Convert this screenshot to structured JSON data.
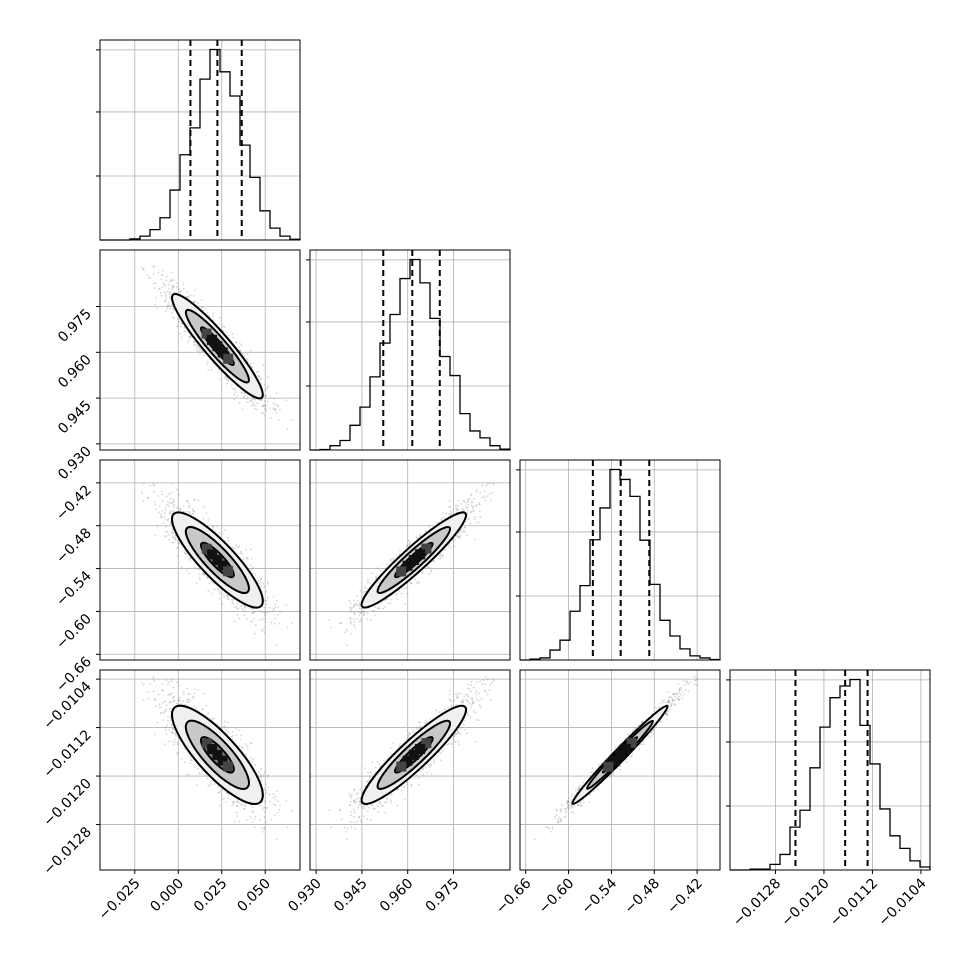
{
  "chart_data": {
    "type": "corner",
    "description_free": true,
    "parameters": [
      {
        "key": "p0",
        "mean": 0.0225,
        "std": 0.0145,
        "range": [
          -0.045,
          0.07
        ],
        "ticks": [
          -0.025,
          0.0,
          0.025,
          0.05
        ],
        "tick_labels": [
          "−0.025",
          "0.000",
          "0.025",
          "0.050"
        ],
        "quantiles": [
          0.007,
          0.0225,
          0.0365
        ]
      },
      {
        "key": "p1",
        "mean": 0.962,
        "std": 0.0095,
        "range": [
          0.928,
          0.9935
        ],
        "ticks": [
          0.93,
          0.945,
          0.96,
          0.975
        ],
        "tick_labels": [
          "0.930",
          "0.945",
          "0.960",
          "0.975"
        ],
        "quantiles": [
          0.952,
          0.9615,
          0.9705
        ]
      },
      {
        "key": "p2",
        "mean": -0.528,
        "std": 0.037,
        "range": [
          -0.668,
          -0.388
        ],
        "ticks": [
          -0.66,
          -0.6,
          -0.54,
          -0.48,
          -0.42
        ],
        "tick_labels": [
          "−0.66",
          "−0.60",
          "−0.54",
          "−0.48",
          "−0.42"
        ],
        "quantiles": [
          -0.566,
          -0.527,
          -0.487
        ]
      },
      {
        "key": "p3",
        "mean": -0.01165,
        "std": 0.00045,
        "range": [
          -0.01355,
          -0.01025
        ],
        "ticks": [
          -0.0128,
          -0.012,
          -0.0112,
          -0.0104
        ],
        "tick_labels": [
          "−0.0128",
          "−0.0120",
          "−0.0112",
          "−0.0104"
        ],
        "quantiles": [
          -0.01247,
          -0.01165,
          -0.01128
        ]
      }
    ],
    "correlations": {
      "0_1": -0.93,
      "0_2": -0.86,
      "0_3": -0.82,
      "1_2": 0.94,
      "1_3": 0.92,
      "2_3": 0.985
    },
    "histogram_bins": 20,
    "grid": true,
    "quantile_style": "dashed"
  }
}
